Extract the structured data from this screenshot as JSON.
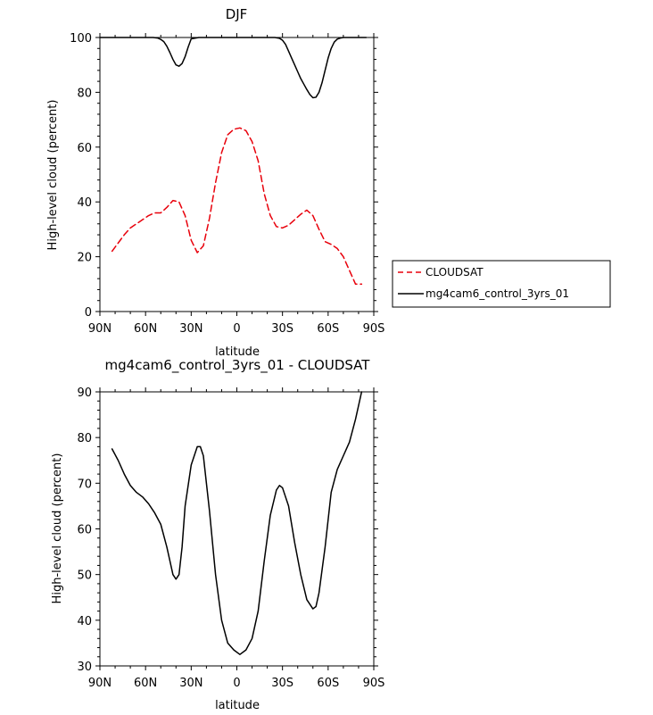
{
  "chart_data": [
    {
      "type": "line",
      "title": "DJF",
      "xlabel": "latitude",
      "ylabel": "High-level cloud (percent)",
      "xlim": [
        90,
        -90
      ],
      "ylim": [
        0,
        100
      ],
      "xticks": [
        {
          "v": 90,
          "label": "90N"
        },
        {
          "v": 60,
          "label": "60N"
        },
        {
          "v": 30,
          "label": "30N"
        },
        {
          "v": 0,
          "label": "0"
        },
        {
          "v": -30,
          "label": "30S"
        },
        {
          "v": -60,
          "label": "60S"
        },
        {
          "v": -90,
          "label": "90S"
        }
      ],
      "yticks": [
        0,
        20,
        40,
        60,
        80,
        100
      ],
      "legend": {
        "position": "right",
        "entries": [
          "CLOUDSAT",
          "mg4cam6_control_3yrs_01"
        ]
      },
      "series": [
        {
          "name": "CLOUDSAT",
          "color": "#e8000b",
          "style": "dashed",
          "x": [
            82,
            78,
            74,
            70,
            66,
            62,
            58,
            54,
            50,
            46,
            42,
            38,
            34,
            30,
            26,
            22,
            18,
            14,
            10,
            6,
            2,
            -2,
            -6,
            -10,
            -14,
            -18,
            -22,
            -26,
            -30,
            -34,
            -38,
            -42,
            -46,
            -50,
            -54,
            -58,
            -62,
            -66,
            -70,
            -74,
            -78,
            -82
          ],
          "values": [
            22,
            25,
            28,
            30.5,
            32,
            33.5,
            35,
            36,
            36,
            38,
            40.5,
            40,
            35,
            26,
            21.5,
            24,
            34,
            47,
            58,
            64.5,
            66.5,
            67,
            66,
            62,
            55,
            43,
            35,
            31,
            30.5,
            31.5,
            33.5,
            35.5,
            37,
            35,
            30,
            25.5,
            24.5,
            23,
            20,
            15,
            10,
            10
          ]
        },
        {
          "name": "mg4cam6_control_3yrs_01",
          "color": "#000000",
          "style": "solid",
          "x": [
            90,
            80,
            70,
            60,
            55,
            52,
            50,
            48,
            46,
            44,
            42,
            40,
            38,
            36,
            34,
            32,
            30,
            25,
            20,
            10,
            0,
            -10,
            -20,
            -25,
            -28,
            -30,
            -32,
            -34,
            -36,
            -38,
            -40,
            -42,
            -44,
            -46,
            -48,
            -50,
            -52,
            -54,
            -56,
            -58,
            -60,
            -62,
            -64,
            -66,
            -68,
            -70,
            -75,
            -80,
            -85
          ],
          "values": [
            100,
            100,
            100,
            100,
            100,
            99.8,
            99.3,
            98.5,
            96.8,
            94.5,
            92,
            90,
            89.5,
            90.5,
            93,
            96.5,
            99.5,
            100,
            100,
            100,
            100,
            100,
            100,
            100,
            99.7,
            99,
            97.5,
            95,
            92.5,
            90,
            87.5,
            85,
            83,
            81,
            79.2,
            78,
            78.2,
            80,
            83.5,
            88,
            92.5,
            96,
            98.3,
            99.4,
            99.8,
            100,
            100,
            100,
            100
          ]
        }
      ]
    },
    {
      "type": "line",
      "title": "mg4cam6_control_3yrs_01 - CLOUDSAT",
      "xlabel": "latitude",
      "ylabel": "High-level cloud (percent)",
      "xlim": [
        90,
        -90
      ],
      "ylim": [
        30,
        90
      ],
      "xticks": [
        {
          "v": 90,
          "label": "90N"
        },
        {
          "v": 60,
          "label": "60N"
        },
        {
          "v": 30,
          "label": "30N"
        },
        {
          "v": 0,
          "label": "0"
        },
        {
          "v": -30,
          "label": "30S"
        },
        {
          "v": -60,
          "label": "60S"
        },
        {
          "v": -90,
          "label": "90S"
        }
      ],
      "yticks": [
        30,
        40,
        50,
        60,
        70,
        80,
        90
      ],
      "series": [
        {
          "name": "mg4cam6_control_3yrs_01 - CLOUDSAT",
          "color": "#000000",
          "style": "solid",
          "x": [
            82,
            78,
            74,
            70,
            66,
            62,
            58,
            54,
            50,
            46,
            42,
            40,
            38,
            36,
            34,
            30,
            26,
            24,
            22,
            18,
            14,
            10,
            6,
            2,
            -2,
            -6,
            -10,
            -14,
            -18,
            -22,
            -26,
            -28,
            -30,
            -34,
            -38,
            -42,
            -46,
            -50,
            -52,
            -54,
            -58,
            -62,
            -66,
            -70,
            -74,
            -78,
            -82
          ],
          "values": [
            77.5,
            75,
            72,
            69.5,
            68,
            67,
            65.5,
            63.5,
            61,
            56,
            50,
            49,
            50,
            56,
            65,
            74,
            78,
            78,
            76,
            64,
            50,
            40,
            35,
            33.5,
            32.5,
            33.5,
            36,
            42,
            53,
            63,
            68.5,
            69.5,
            69,
            65,
            57,
            50,
            44.5,
            42.5,
            43,
            46,
            56,
            68,
            73,
            76,
            79,
            84,
            90
          ]
        }
      ]
    }
  ]
}
